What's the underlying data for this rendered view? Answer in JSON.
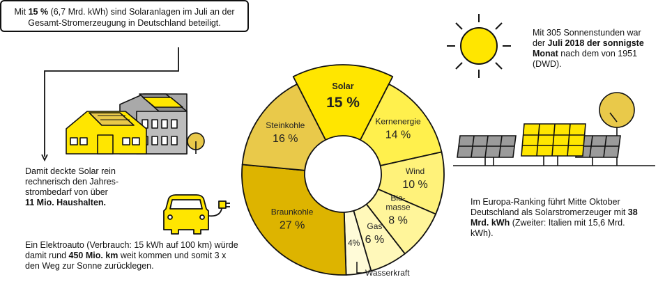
{
  "callout": {
    "pre": "Mit ",
    "bold": "15 %",
    "post": " (6,7 Mrd. kWh) sind Solaranlagen im Juli an der Gesamt-Stromerzeugung in Deutschland beteiligt."
  },
  "sun_text": {
    "pre": "Mit 305 Sonnenstunden war der ",
    "bold": "Juli 2018 der sonnigste Monat",
    "post": " nach dem von 1951 (DWD)."
  },
  "households_text": {
    "pre": "Damit deckte Solar rein rechnerisch den Jahres-strombedarf von über",
    "bold": "11 Mio. Haushalten."
  },
  "car_text": {
    "pre": "Ein Elektroauto (Verbrauch: 15 kWh auf 100 km) würde damit rund ",
    "bold": "450 Mio. km",
    "post": " weit kommen und somit 3 x den Weg zur Sonne zurücklegen."
  },
  "europe_text": {
    "pre": "Im Europa-Ranking führt Mitte Oktober Deutschland als Solarstromerzeuger mit ",
    "bold": "38 Mrd. kWh",
    "post": " (Zweiter: Italien mit 15,6 Mrd. kWh)."
  },
  "colors": {
    "solar": "#FFE600",
    "accent": "#F2D400",
    "grey": "#9B9B9B",
    "outline": "#111111"
  },
  "chart_data": {
    "type": "pie",
    "donut": true,
    "title": "",
    "slices": [
      {
        "label": "Solar",
        "value": 15,
        "value_label": "15 %",
        "color": "#FFE600"
      },
      {
        "label": "Kernenergie",
        "value": 14,
        "value_label": "14 %",
        "color": "#FFF04D"
      },
      {
        "label": "Wind",
        "value": 10,
        "value_label": "10 %",
        "color": "#FFF27A"
      },
      {
        "label": "Bio-masse",
        "value": 8,
        "value_label": "8 %",
        "color": "#FFF59A"
      },
      {
        "label": "Gas",
        "value": 6,
        "value_label": "6 %",
        "color": "#FFF8BA"
      },
      {
        "label": "Wasserkraft",
        "value": 4,
        "value_label": "4%",
        "color": "#FFFBD8"
      },
      {
        "label": "Braunkohle",
        "value": 27,
        "value_label": "27 %",
        "color": "#DDB400"
      },
      {
        "label": "Steinkohle",
        "value": 16,
        "value_label": "16 %",
        "color": "#E9C94A"
      }
    ]
  }
}
